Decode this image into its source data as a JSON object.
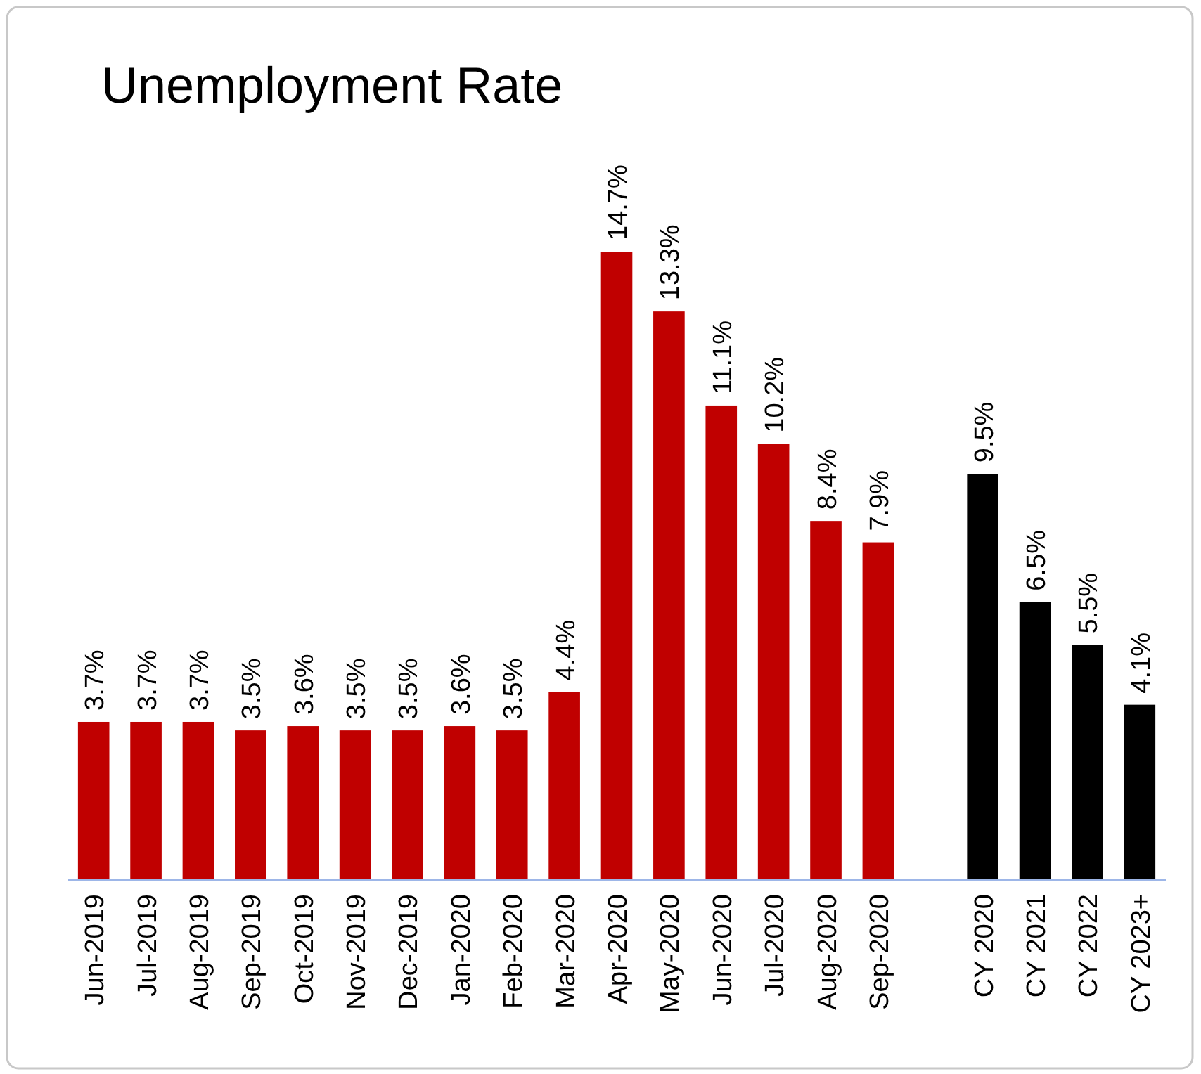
{
  "chart_data": {
    "type": "bar",
    "title": "Unemployment Rate",
    "categories": [
      "Jun-2019",
      "Jul-2019",
      "Aug-2019",
      "Sep-2019",
      "Oct-2019",
      "Nov-2019",
      "Dec-2019",
      "Jan-2020",
      "Feb-2020",
      "Mar-2020",
      "Apr-2020",
      "May-2020",
      "Jun-2020",
      "Jul-2020",
      "Aug-2020",
      "Sep-2020",
      null,
      "CY 2020",
      "CY 2021",
      "CY 2022",
      "CY 2023+"
    ],
    "values": [
      3.7,
      3.7,
      3.7,
      3.5,
      3.6,
      3.5,
      3.5,
      3.6,
      3.5,
      4.4,
      14.7,
      13.3,
      11.1,
      10.2,
      8.4,
      7.9,
      null,
      9.5,
      6.5,
      5.5,
      4.1
    ],
    "value_labels": [
      "3.7%",
      "3.7%",
      "3.7%",
      "3.5%",
      "3.6%",
      "3.5%",
      "3.5%",
      "3.6%",
      "3.5%",
      "4.4%",
      "14.7%",
      "13.3%",
      "11.1%",
      "10.2%",
      "8.4%",
      "7.9%",
      null,
      "9.5%",
      "6.5%",
      "5.5%",
      "4.1%"
    ],
    "colors": [
      "#c00000",
      "#c00000",
      "#c00000",
      "#c00000",
      "#c00000",
      "#c00000",
      "#c00000",
      "#c00000",
      "#c00000",
      "#c00000",
      "#c00000",
      "#c00000",
      "#c00000",
      "#c00000",
      "#c00000",
      "#c00000",
      null,
      "#000000",
      "#000000",
      "#000000",
      "#000000"
    ]
  }
}
